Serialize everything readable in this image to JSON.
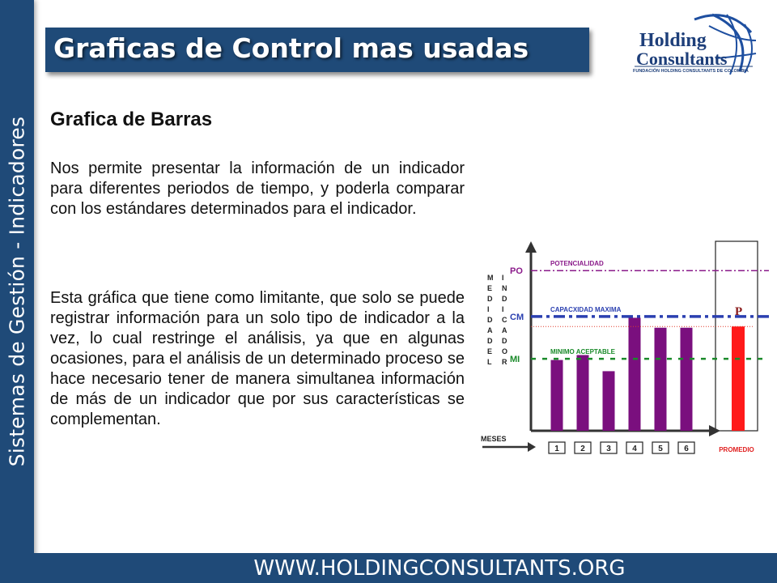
{
  "sidebar": {
    "text": "Sistemas de Gestión - Indicadores"
  },
  "header": {
    "title": "Graficas de Control mas usadas"
  },
  "logo": {
    "line1": "Holding",
    "line2": "Consultants",
    "tagline": "FUNDACIÓN HOLDING CONSULTANTS DE COLOMBIA"
  },
  "content": {
    "heading": "Grafica de Barras",
    "paragraph1": "Nos permite presentar la información de un indicador para diferentes periodos de tiempo, y poderla comparar con los estándares determinados para el indicador.",
    "paragraph2": "Esta gráfica que tiene como limitante, que solo se puede registrar información para un solo tipo de indicador a la vez, lo cual restringe el análisis, ya que en algunas ocasiones, para el análisis de un determinado proceso se hace necesario tener de manera simultanea información de más de un indicador que por sus características se complementan."
  },
  "footer": {
    "url": "WWW.HOLDINGCONSULTANTS.ORG"
  },
  "colors": {
    "band": "#1f4a78",
    "bar": "#7a0f7e",
    "promedio": "#ff1a1a",
    "po_line": "#8a1a8a",
    "cm_line": "#2a3fb0",
    "mi_line": "#1a8a2a"
  },
  "chart_data": {
    "type": "bar",
    "ylabel": "MEDIDA DEL",
    "ylabel2": "INDICADOR",
    "xlabel": "MESES",
    "categories": [
      "1",
      "2",
      "3",
      "4",
      "5",
      "6"
    ],
    "values": [
      57,
      61,
      48,
      91,
      83,
      83
    ],
    "ylim": [
      0,
      150
    ],
    "promedio": {
      "label": "PROMEDIO",
      "marker": "P",
      "value": 84
    },
    "reference_lines": [
      {
        "tag": "PO",
        "label": "POTENCIALIDAD",
        "value": 129,
        "style": "dash-dot"
      },
      {
        "tag": "CM",
        "label": "CAPACXIDAD MAXIMA",
        "value": 92,
        "style": "dash-dot"
      },
      {
        "tag": "MI",
        "label": "MINIMO ACEPTABLE",
        "value": 58,
        "style": "dashed"
      }
    ],
    "grid": false,
    "legend": "none"
  }
}
